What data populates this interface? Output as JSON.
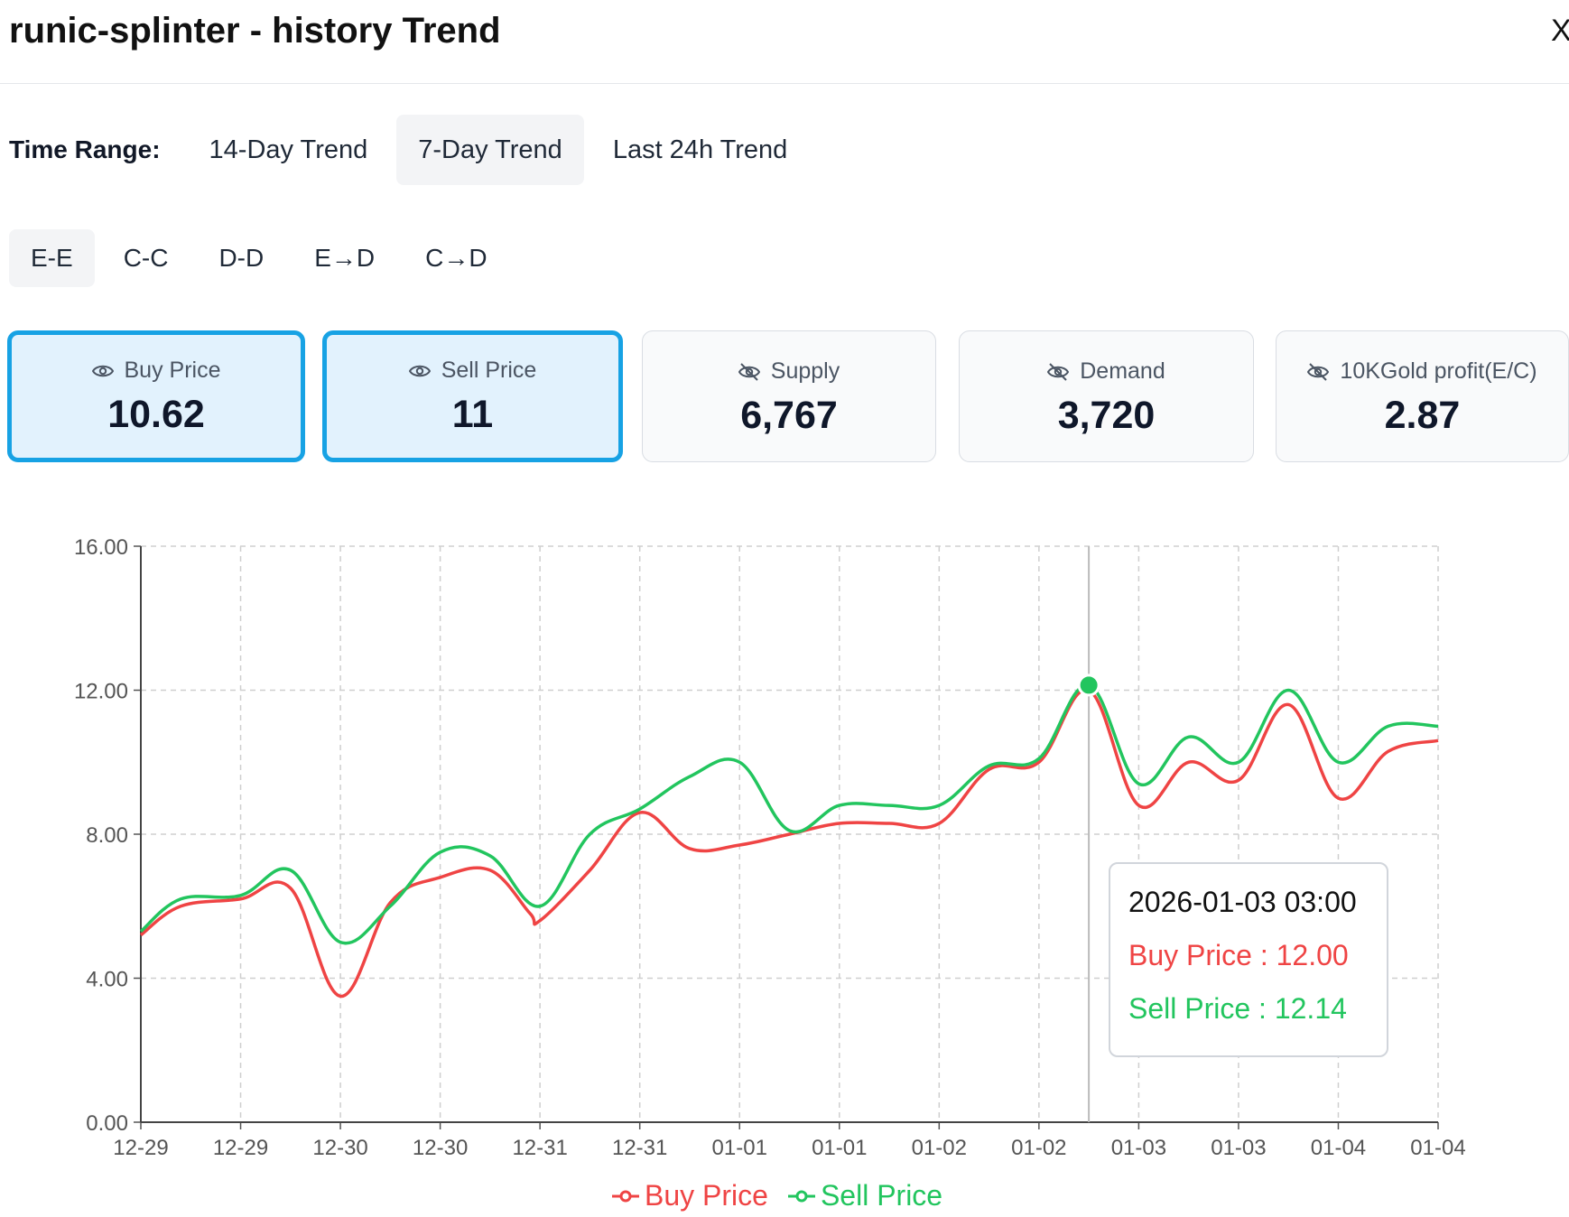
{
  "header": {
    "title": "runic-splinter - history Trend",
    "close_label": "X"
  },
  "time_range": {
    "label": "Time Range:",
    "tabs": [
      {
        "label": "14-Day Trend",
        "active": false
      },
      {
        "label": "7-Day Trend",
        "active": true
      },
      {
        "label": "Last 24h Trend",
        "active": false
      }
    ]
  },
  "modes": [
    {
      "label": "E-E",
      "active": true
    },
    {
      "label": "C-C",
      "active": false
    },
    {
      "label": "D-D",
      "active": false
    },
    {
      "label": "E→D",
      "active": false
    },
    {
      "label": "C→D",
      "active": false
    }
  ],
  "cards": [
    {
      "label": "Buy Price",
      "value": "10.62",
      "icon": "eye-icon",
      "active": true
    },
    {
      "label": "Sell Price",
      "value": "11",
      "icon": "eye-icon",
      "active": true
    },
    {
      "label": "Supply",
      "value": "6,767",
      "icon": "eye-off-icon",
      "active": false
    },
    {
      "label": "Demand",
      "value": "3,720",
      "icon": "eye-off-icon",
      "active": false
    },
    {
      "label": "10KGold profit(E/C)",
      "value": "2.87",
      "icon": "eye-off-icon",
      "active": false
    }
  ],
  "colors": {
    "buy": "#ef4444",
    "sell": "#22c55e",
    "active_border": "#17a2e4",
    "active_bg": "#e2f2fd"
  },
  "tooltip": {
    "time": "2026-01-03 03:00",
    "buy": "Buy Price : 12.00",
    "sell": "Sell Price : 12.14"
  },
  "chart_data": {
    "type": "line",
    "ylim": [
      0,
      16
    ],
    "yticks": [
      "0.00",
      "4.00",
      "8.00",
      "12.00",
      "16.00"
    ],
    "categories": [
      "12-29",
      "12-29",
      "12-30",
      "12-30",
      "12-31",
      "12-31",
      "01-01",
      "01-01",
      "01-02",
      "01-02",
      "01-03",
      "01-03",
      "01-04",
      "01-04"
    ],
    "grid": true,
    "legend": "bottom",
    "series": [
      {
        "name": "Buy Price",
        "color": "#ef4444",
        "x": [
          0,
          0.4,
          1,
          1.5,
          2,
          2.5,
          3,
          3.5,
          3.9,
          4,
          4.5,
          5,
          5.5,
          6,
          6.5,
          7,
          7.5,
          8,
          8.5,
          9,
          9.5,
          10,
          10.5,
          11,
          11.5,
          12,
          12.5,
          13
        ],
        "y": [
          5.2,
          6.0,
          6.2,
          6.5,
          3.5,
          6.1,
          6.8,
          7.0,
          5.8,
          5.6,
          7.0,
          8.6,
          7.6,
          7.7,
          8.0,
          8.3,
          8.3,
          8.3,
          9.8,
          10.0,
          12.0,
          8.8,
          10.0,
          9.5,
          11.6,
          9.0,
          10.3,
          10.6
        ]
      },
      {
        "name": "Sell Price",
        "color": "#22c55e",
        "x": [
          0,
          0.4,
          1,
          1.5,
          2,
          2.5,
          3,
          3.5,
          4,
          4.5,
          5,
          5.5,
          6,
          6.5,
          7,
          7.5,
          8,
          8.5,
          9,
          9.5,
          10,
          10.5,
          11,
          11.5,
          12,
          12.5,
          13
        ],
        "y": [
          5.3,
          6.2,
          6.3,
          7.0,
          5.0,
          6.0,
          7.5,
          7.4,
          6.0,
          8.0,
          8.7,
          9.6,
          10.0,
          8.1,
          8.8,
          8.8,
          8.8,
          9.9,
          10.1,
          12.14,
          9.4,
          10.7,
          10.0,
          12.0,
          10.0,
          11.0,
          11.0
        ]
      }
    ],
    "highlight": {
      "x": 9.5,
      "y": 12.14
    }
  }
}
